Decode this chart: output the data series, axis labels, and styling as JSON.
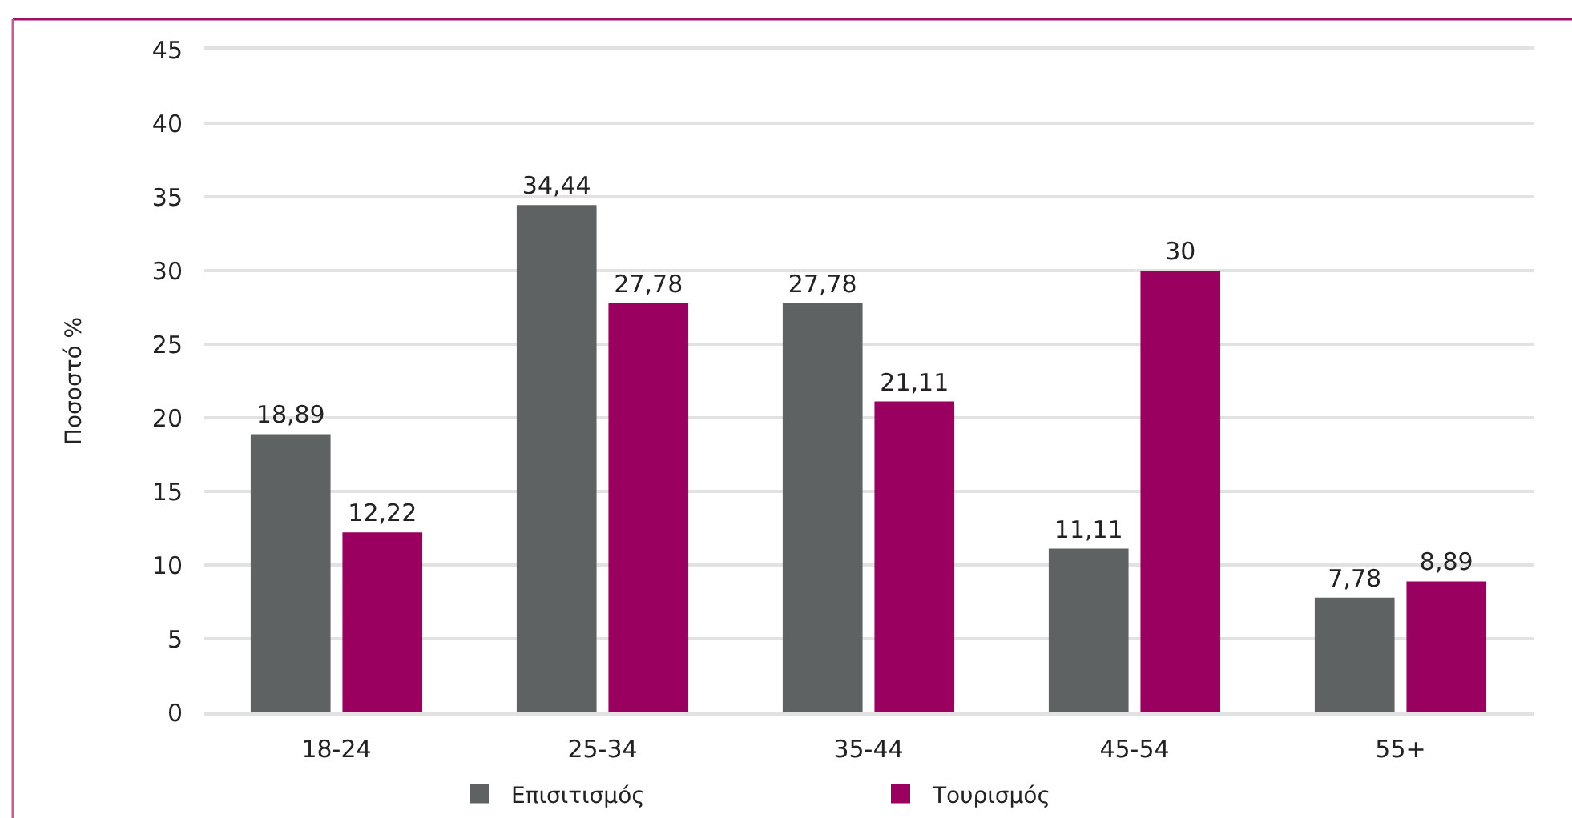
{
  "chart_data": {
    "type": "bar",
    "ylabel": "Ποσοστό %",
    "categories": [
      "18-24",
      "25-34",
      "35-44",
      "45-54",
      "55+"
    ],
    "series": [
      {
        "name": "Επισιτισμός",
        "color": "#5f6262",
        "values": [
          18.89,
          34.44,
          27.78,
          11.11,
          7.78
        ],
        "value_labels": [
          "18,89",
          "34,44",
          "27,78",
          "11,11",
          "7,78"
        ]
      },
      {
        "name": "Τουρισμός",
        "color": "#990060",
        "values": [
          12.22,
          27.78,
          21.11,
          30,
          8.89
        ],
        "value_labels": [
          "12,22",
          "27,78",
          "21,11",
          "30",
          "8,89"
        ]
      }
    ],
    "ylim": [
      0,
      45
    ],
    "yticks": [
      0,
      5,
      10,
      15,
      20,
      25,
      30,
      35,
      40,
      45
    ],
    "grid": "y",
    "legend": "bottom"
  }
}
